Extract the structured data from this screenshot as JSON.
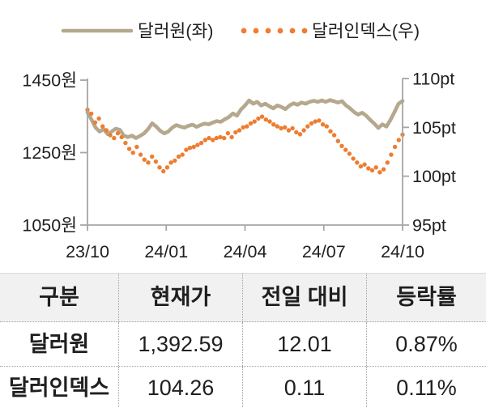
{
  "chart": {
    "legend": [
      {
        "label": "달러원(좌)",
        "marker": "solid-line"
      },
      {
        "label": "달러인덱스(우)",
        "marker": "dots"
      }
    ]
  },
  "chart_data": {
    "type": "line",
    "title": "",
    "x_ticks": [
      "23/10",
      "24/01",
      "24/04",
      "24/07",
      "24/10"
    ],
    "left_axis": {
      "ticks": [
        "1450원",
        "1250원",
        "1050원"
      ],
      "tick_values": [
        1450,
        1250,
        1050
      ],
      "min": 1050,
      "max": 1450,
      "unit": "원"
    },
    "right_axis": {
      "ticks": [
        "110pt",
        "105pt",
        "100pt",
        "95pt"
      ],
      "tick_values": [
        110,
        105,
        100,
        95
      ],
      "min": 95,
      "max": 110,
      "unit": "pt"
    },
    "grid": false,
    "legend_position": "top",
    "series": [
      {
        "name": "달러원(좌)",
        "axis": "left",
        "style": "solid",
        "color": "#b5a88c",
        "values": [
          1361,
          1341,
          1319,
          1308,
          1315,
          1301,
          1308,
          1316,
          1313,
          1297,
          1293,
          1297,
          1290,
          1296,
          1303,
          1315,
          1331,
          1322,
          1310,
          1303,
          1308,
          1319,
          1326,
          1322,
          1319,
          1324,
          1327,
          1321,
          1326,
          1330,
          1328,
          1333,
          1337,
          1335,
          1342,
          1348,
          1358,
          1352,
          1369,
          1380,
          1394,
          1385,
          1390,
          1380,
          1385,
          1378,
          1372,
          1380,
          1376,
          1370,
          1380,
          1386,
          1382,
          1388,
          1385,
          1390,
          1393,
          1390,
          1394,
          1390,
          1395,
          1392,
          1388,
          1392,
          1380,
          1372,
          1362,
          1355,
          1360,
          1352,
          1340,
          1330,
          1318,
          1328,
          1322,
          1340,
          1362,
          1385,
          1392.6
        ]
      },
      {
        "name": "달러인덱스(우)",
        "axis": "right",
        "style": "dotted",
        "color": "#ed7d31",
        "values": [
          106.8,
          106.4,
          105.5,
          105.9,
          105.1,
          104.7,
          104.2,
          103.9,
          104.4,
          104.0,
          103.4,
          102.8,
          102.4,
          103.0,
          102.2,
          101.7,
          101.4,
          102.0,
          101.5,
          100.9,
          100.5,
          100.9,
          101.4,
          101.6,
          102.0,
          102.2,
          102.7,
          102.9,
          103.0,
          103.2,
          103.4,
          103.7,
          103.9,
          103.7,
          103.9,
          104.0,
          103.9,
          104.4,
          104.0,
          104.5,
          104.7,
          105.0,
          105.1,
          105.4,
          105.6,
          105.9,
          106.1,
          105.8,
          105.6,
          105.3,
          105.1,
          104.9,
          105.0,
          104.7,
          104.9,
          104.5,
          104.3,
          104.7,
          105.1,
          105.4,
          105.6,
          105.7,
          105.3,
          105.1,
          104.6,
          104.2,
          103.6,
          103.1,
          102.7,
          102.3,
          101.8,
          101.4,
          101.0,
          101.2,
          100.8,
          100.6,
          100.9,
          100.4,
          100.7,
          101.4,
          102.2,
          103.0,
          103.7,
          104.26
        ]
      }
    ]
  },
  "table": {
    "headers": [
      "구분",
      "현재가",
      "전일 대비",
      "등락률"
    ],
    "rows": [
      {
        "label": "달러원",
        "current": "1,392.59",
        "change": "12.01",
        "pct": "0.87%"
      },
      {
        "label": "달러인덱스",
        "current": "104.26",
        "change": "0.11",
        "pct": "0.11%"
      }
    ]
  },
  "colors": {
    "series1": "#b5a88c",
    "series2": "#ed7d31",
    "axis": "#a6a6a6",
    "text": "#1f1f1f",
    "header_bg": "#f1f1f1",
    "dotted_border": "#a9a398"
  }
}
